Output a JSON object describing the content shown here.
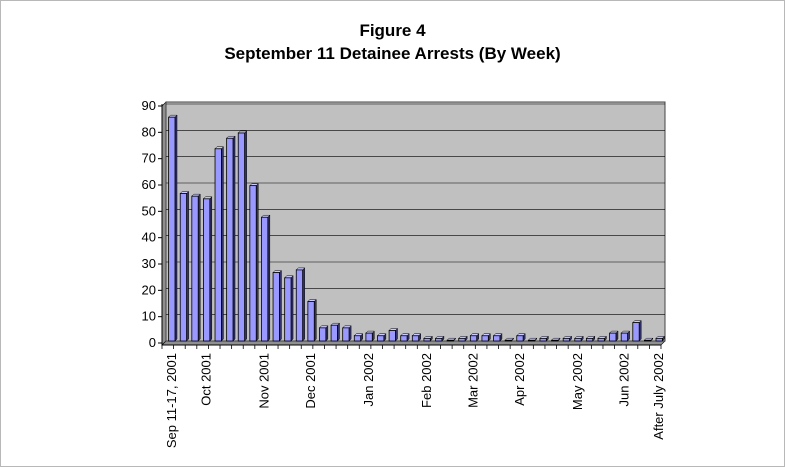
{
  "chart_data": {
    "type": "bar",
    "title": "Figure 4",
    "subtitle": "September 11 Detainee Arrests (By Week)",
    "xlabel": "",
    "ylabel": "",
    "ylim": [
      0,
      90
    ],
    "y_ticks": [
      0,
      10,
      20,
      30,
      40,
      50,
      60,
      70,
      80,
      90
    ],
    "grid": true,
    "legend": "none",
    "colors": {
      "bar": "#9999ff",
      "plot_area": "#c0c0c0",
      "grid": "#000000"
    },
    "values": [
      85,
      56,
      55,
      54,
      73,
      77,
      79,
      59,
      47,
      26,
      24,
      27,
      15,
      5,
      6,
      5,
      2,
      3,
      2,
      4,
      2,
      2,
      1,
      1,
      0,
      1,
      2,
      2,
      2,
      0,
      2,
      0,
      1,
      0,
      1,
      1,
      1,
      1,
      3,
      3,
      7,
      0,
      1
    ],
    "x_tick_labels": [
      {
        "index": 0,
        "label": "Sep 11-17, 2001"
      },
      {
        "index": 3,
        "label": "Oct 2001"
      },
      {
        "index": 8,
        "label": "Nov 2001"
      },
      {
        "index": 12,
        "label": "Dec 2001"
      },
      {
        "index": 17,
        "label": "Jan 2002"
      },
      {
        "index": 22,
        "label": "Feb 2002"
      },
      {
        "index": 26,
        "label": "Mar 2002"
      },
      {
        "index": 30,
        "label": "Apr 2002"
      },
      {
        "index": 35,
        "label": "May 2002"
      },
      {
        "index": 39,
        "label": "Jun 2002"
      },
      {
        "index": 42,
        "label": "After July 2002"
      }
    ]
  }
}
